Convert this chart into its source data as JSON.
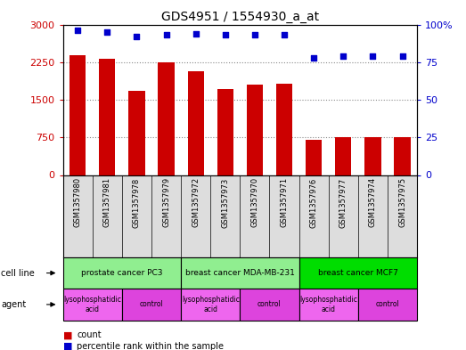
{
  "title": "GDS4951 / 1554930_a_at",
  "samples": [
    "GSM1357980",
    "GSM1357981",
    "GSM1357978",
    "GSM1357979",
    "GSM1357972",
    "GSM1357973",
    "GSM1357970",
    "GSM1357971",
    "GSM1357976",
    "GSM1357977",
    "GSM1357974",
    "GSM1357975"
  ],
  "counts": [
    2380,
    2310,
    1680,
    2240,
    2070,
    1720,
    1810,
    1820,
    710,
    760,
    760,
    760
  ],
  "percentiles": [
    96,
    95,
    92,
    93,
    94,
    93,
    93,
    93,
    78,
    79,
    79,
    79
  ],
  "ylim_left": [
    0,
    3000
  ],
  "ylim_right": [
    0,
    100
  ],
  "yticks_left": [
    0,
    750,
    1500,
    2250,
    3000
  ],
  "ytick_labels_left": [
    "0",
    "750",
    "1500",
    "2250",
    "3000"
  ],
  "yticks_right": [
    0,
    25,
    50,
    75,
    100
  ],
  "ytick_labels_right": [
    "0",
    "25",
    "50",
    "75",
    "100%"
  ],
  "cell_lines": [
    {
      "label": "prostate cancer PC3",
      "start": 0,
      "end": 4,
      "color": "#90EE90"
    },
    {
      "label": "breast cancer MDA-MB-231",
      "start": 4,
      "end": 8,
      "color": "#90EE90"
    },
    {
      "label": "breast cancer MCF7",
      "start": 8,
      "end": 12,
      "color": "#00DD00"
    }
  ],
  "agents": [
    {
      "label": "lysophosphatidic\nacid",
      "start": 0,
      "end": 2,
      "color": "#EE66EE"
    },
    {
      "label": "control",
      "start": 2,
      "end": 4,
      "color": "#DD44DD"
    },
    {
      "label": "lysophosphatidic\nacid",
      "start": 4,
      "end": 6,
      "color": "#EE66EE"
    },
    {
      "label": "control",
      "start": 6,
      "end": 8,
      "color": "#DD44DD"
    },
    {
      "label": "lysophosphatidic\nacid",
      "start": 8,
      "end": 10,
      "color": "#EE66EE"
    },
    {
      "label": "control",
      "start": 10,
      "end": 12,
      "color": "#DD44DD"
    }
  ],
  "bar_color": "#CC0000",
  "dot_color": "#0000CC",
  "grid_color": "#888888",
  "label_bg": "#DDDDDD",
  "tick_color_left": "#CC0000",
  "tick_color_right": "#0000CC",
  "title_fontsize": 10,
  "bar_width": 0.55
}
